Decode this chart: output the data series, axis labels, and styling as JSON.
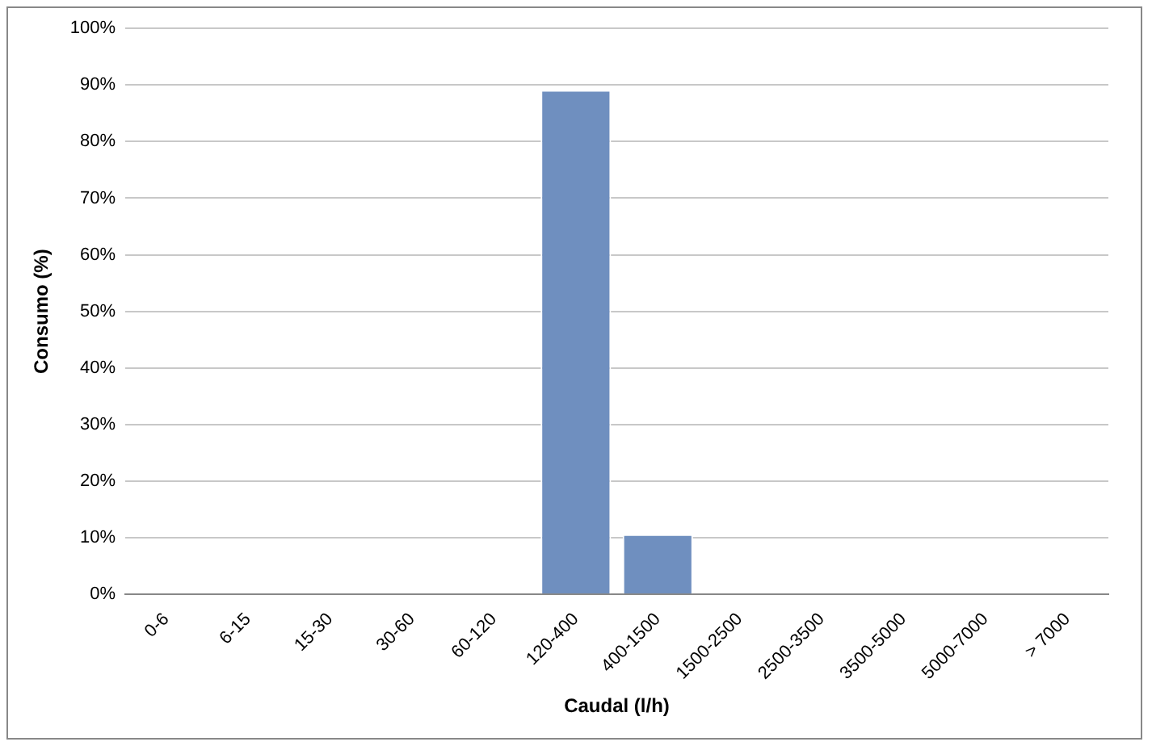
{
  "chart_data": {
    "type": "bar",
    "xlabel": "Caudal (l/h)",
    "ylabel": "Consumo (%)",
    "categories": [
      "0-6",
      "6-15",
      "15-30",
      "30-60",
      "60-120",
      "120-400",
      "400-1500",
      "1500-2500",
      "2500-3500",
      "3500-5000",
      "5000-7000",
      "> 7000"
    ],
    "values": [
      0,
      0,
      0,
      0,
      0,
      89.1,
      10.6,
      0,
      0,
      0,
      0,
      0
    ],
    "color": "#6f8fbf",
    "ylim": [
      0,
      100
    ],
    "yticks": [
      {
        "value": 0,
        "label": "0%"
      },
      {
        "value": 10,
        "label": "10%"
      },
      {
        "value": 20,
        "label": "20%"
      },
      {
        "value": 30,
        "label": "30%"
      },
      {
        "value": 40,
        "label": "40%"
      },
      {
        "value": 50,
        "label": "50%"
      },
      {
        "value": 60,
        "label": "60%"
      },
      {
        "value": 70,
        "label": "70%"
      },
      {
        "value": 80,
        "label": "80%"
      },
      {
        "value": 90,
        "label": "90%"
      },
      {
        "value": 100,
        "label": "100%"
      }
    ],
    "grid": "y",
    "legend": false
  }
}
